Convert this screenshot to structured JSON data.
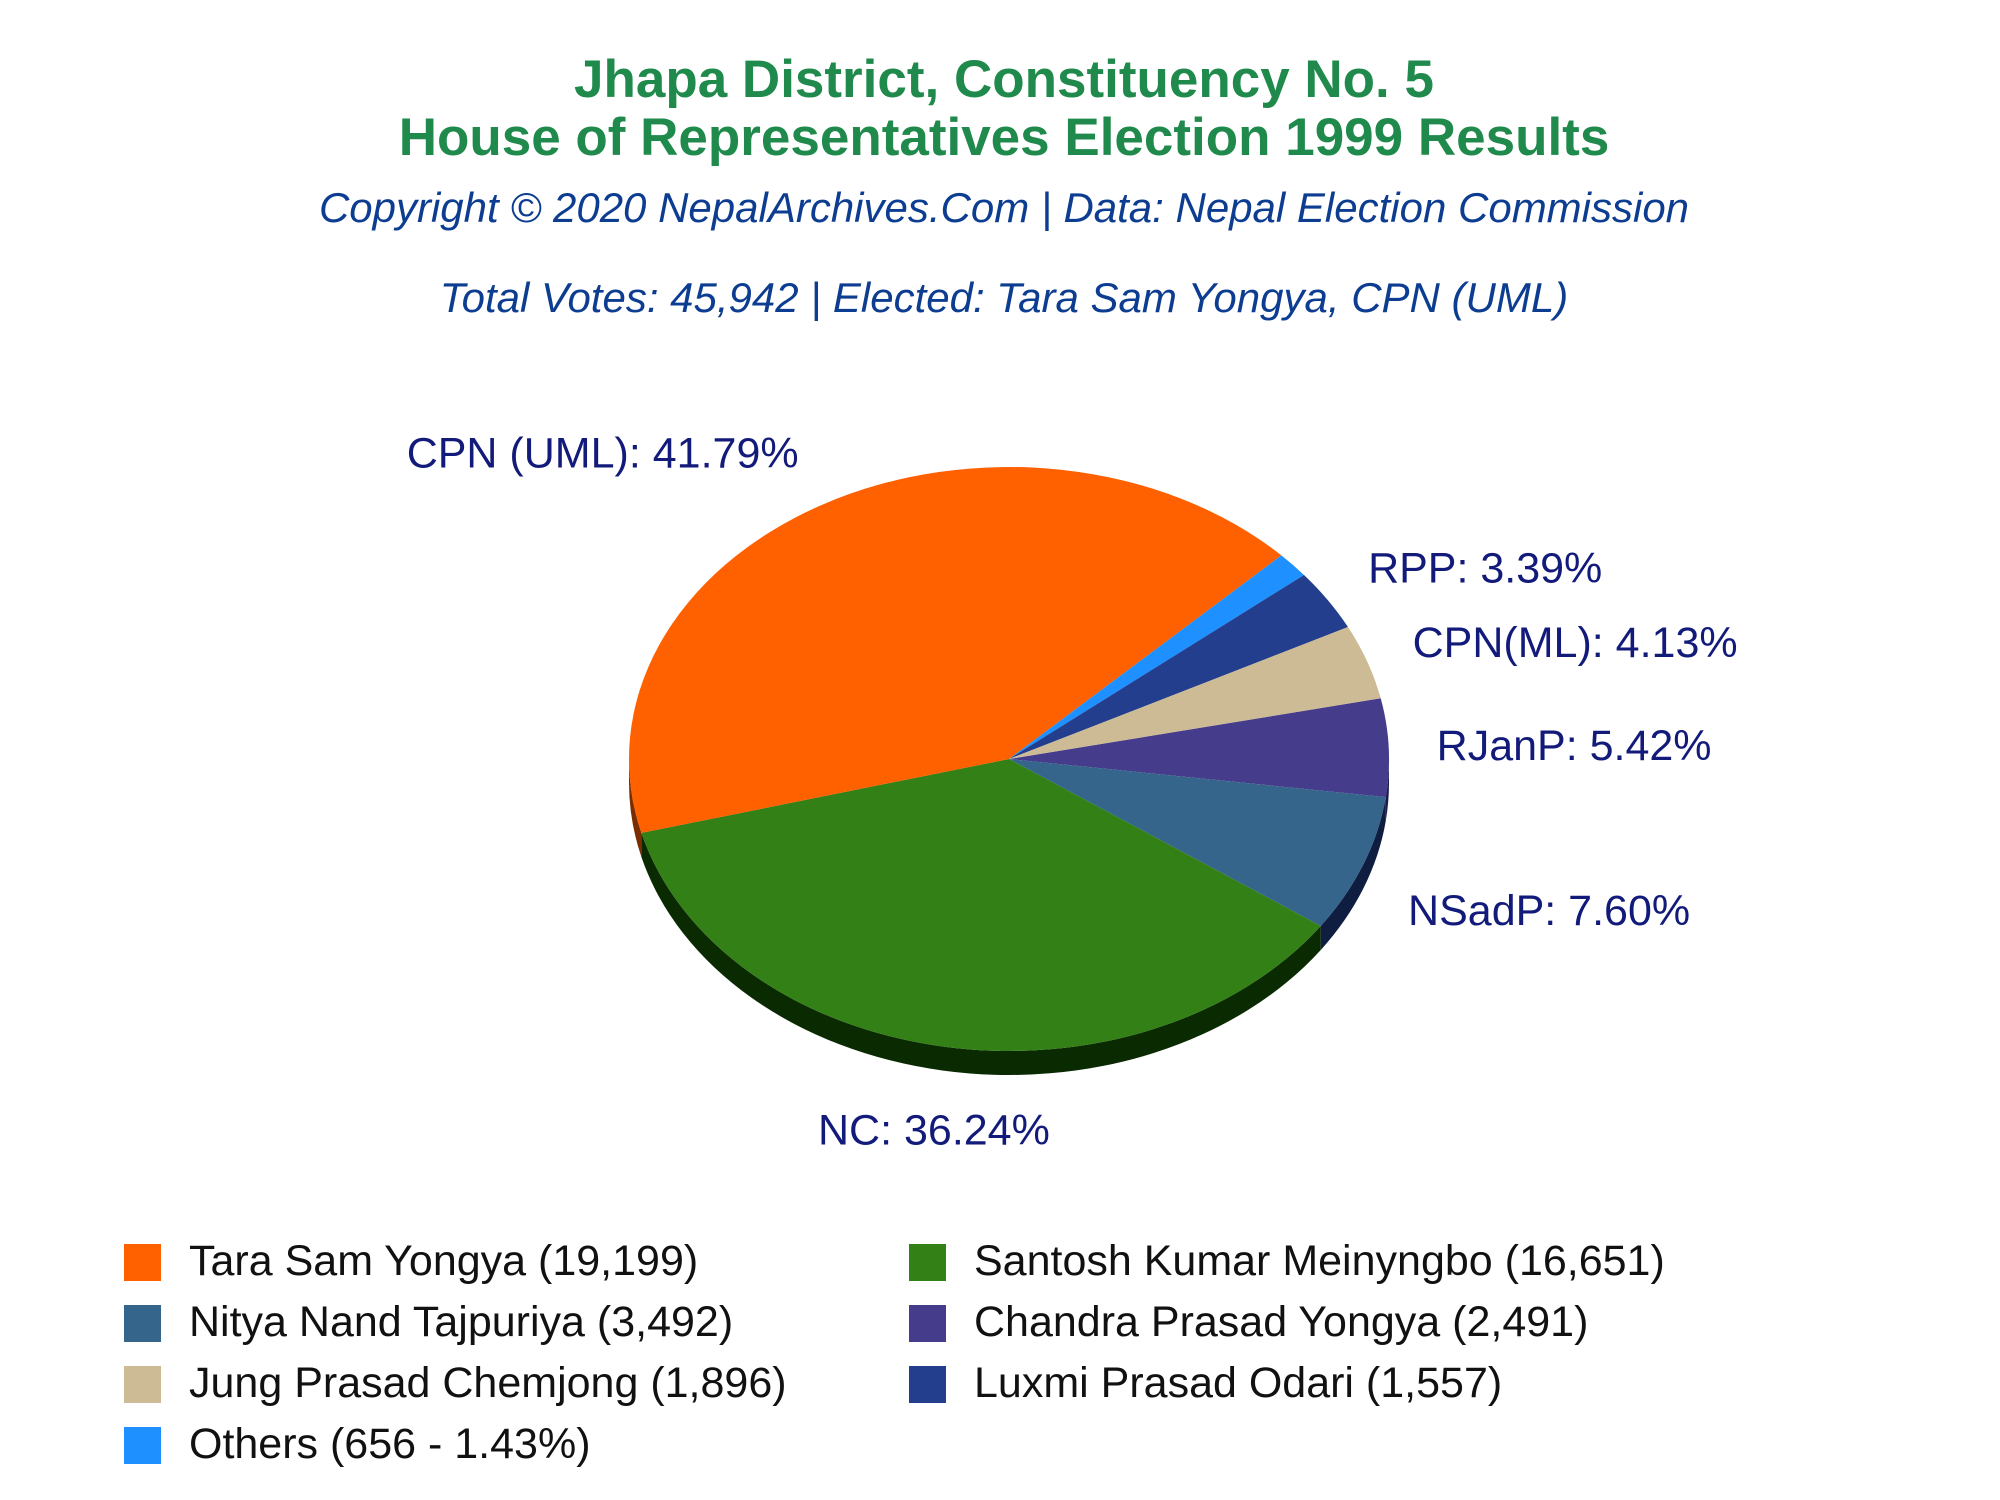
{
  "header": {
    "title_line1": "Jhapa District, Constituency No. 5",
    "title_line2": "House of Representatives Election 1999 Results",
    "copyright": "Copyright © 2020 NepalArchives.Com | Data: Nepal Election Commission",
    "summary": "Total Votes: 45,942 | Elected: Tara Sam Yongya, CPN (UML)"
  },
  "chart_data": {
    "type": "pie",
    "style": "3d",
    "start_angle_deg": -12,
    "direction": "clockwise",
    "slices": [
      {
        "party": "RJanP",
        "percent": 5.42,
        "label": "RJanP: 5.42%",
        "color": "#463c8c",
        "side_color": "#1e1a50"
      },
      {
        "party": "NSadP",
        "percent": 7.6,
        "label": "NSadP: 7.60%",
        "color": "#35658b",
        "side_color": "#0e1d40"
      },
      {
        "party": "NC",
        "percent": 36.24,
        "label": "NC: 36.24%",
        "color": "#338017",
        "side_color": "#0a2a02"
      },
      {
        "party": "CPN (UML)",
        "percent": 41.79,
        "label": "CPN (UML): 41.79%",
        "color": "#ff6000",
        "side_color": "#7a2d00"
      },
      {
        "party": "Others",
        "percent": 1.43,
        "label": "",
        "color": "#1e90ff",
        "side_color": "#0b3f7a"
      },
      {
        "party": "RPP",
        "percent": 3.39,
        "label": "RPP: 3.39%",
        "color": "#223e8c",
        "side_color": "#0b1a42"
      },
      {
        "party": "CPN(ML)",
        "percent": 4.13,
        "label": "CPN(ML): 4.13%",
        "color": "#cdbb96",
        "side_color": "#6e6248"
      }
    ]
  },
  "legend": {
    "columns": [
      [
        {
          "text": "Tara Sam Yongya (19,199)",
          "color": "#ff6000"
        },
        {
          "text": "Nitya Nand Tajpuriya (3,492)",
          "color": "#35658b"
        },
        {
          "text": "Jung Prasad Chemjong (1,896)",
          "color": "#cdbb96"
        },
        {
          "text": "Others (656 - 1.43%)",
          "color": "#1e90ff"
        }
      ],
      [
        {
          "text": "Santosh Kumar Meinyngbo (16,651)",
          "color": "#338017"
        },
        {
          "text": "Chandra Prasad Yongya (2,491)",
          "color": "#463c8c"
        },
        {
          "text": "Luxmi Prasad Odari (1,557)",
          "color": "#223e8c"
        }
      ]
    ]
  }
}
